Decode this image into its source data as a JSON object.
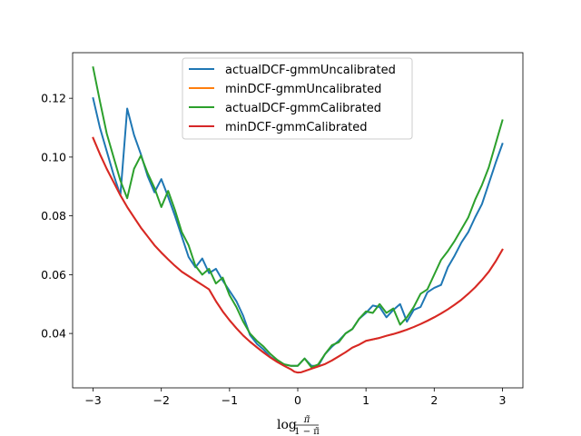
{
  "chart_data": {
    "type": "line",
    "title": "",
    "xlabel": "log π̃/(1 − π̃)",
    "xlabel_parts": {
      "log": "log",
      "num": "π̃",
      "den": "1 − π̃"
    },
    "ylabel": "",
    "xlim": [
      -3.3,
      3.3
    ],
    "ylim": [
      0.0215,
      0.1355
    ],
    "xticks": [
      -3,
      -2,
      -1,
      0,
      1,
      2,
      3
    ],
    "xtick_labels": [
      "−3",
      "−2",
      "−1",
      "0",
      "1",
      "2",
      "3"
    ],
    "yticks": [
      0.04,
      0.06,
      0.08,
      0.1,
      0.12
    ],
    "ytick_labels": [
      "0.04",
      "0.06",
      "0.08",
      "0.10",
      "0.12"
    ],
    "grid": false,
    "legend_location": "upper-center",
    "series": [
      {
        "name": "actualDCF-gmmUncalibrated",
        "color": "#1f77b4",
        "x": [
          -3.0,
          -2.9,
          -2.8,
          -2.7,
          -2.6,
          -2.5,
          -2.4,
          -2.3,
          -2.2,
          -2.1,
          -2.0,
          -1.9,
          -1.8,
          -1.7,
          -1.6,
          -1.5,
          -1.4,
          -1.3,
          -1.2,
          -1.1,
          -1.0,
          -0.9,
          -0.8,
          -0.7,
          -0.6,
          -0.5,
          -0.4,
          -0.3,
          -0.2,
          -0.1,
          0.0,
          0.1,
          0.2,
          0.3,
          0.4,
          0.5,
          0.6,
          0.7,
          0.8,
          0.9,
          1.0,
          1.1,
          1.2,
          1.3,
          1.4,
          1.5,
          1.6,
          1.7,
          1.8,
          1.9,
          2.0,
          2.1,
          2.2,
          2.3,
          2.4,
          2.5,
          2.6,
          2.7,
          2.8,
          2.9,
          3.0
        ],
        "values": [
          0.12,
          0.11,
          0.102,
          0.094,
          0.087,
          0.1165,
          0.1075,
          0.101,
          0.0935,
          0.088,
          0.0925,
          0.0865,
          0.08,
          0.073,
          0.066,
          0.0625,
          0.0655,
          0.0605,
          0.062,
          0.058,
          0.0545,
          0.051,
          0.046,
          0.0395,
          0.0365,
          0.0345,
          0.032,
          0.0305,
          0.0295,
          0.029,
          0.029,
          0.0315,
          0.029,
          0.029,
          0.033,
          0.0355,
          0.0375,
          0.04,
          0.0415,
          0.045,
          0.047,
          0.0495,
          0.049,
          0.0455,
          0.048,
          0.05,
          0.044,
          0.048,
          0.049,
          0.054,
          0.0555,
          0.0565,
          0.0625,
          0.0665,
          0.071,
          0.0745,
          0.0795,
          0.084,
          0.091,
          0.098,
          0.1045
        ]
      },
      {
        "name": "minDCF-gmmUncalibrated",
        "color": "#ff7f0e",
        "x": [
          -3.0,
          -2.9,
          -2.8,
          -2.7,
          -2.6,
          -2.5,
          -2.4,
          -2.3,
          -2.2,
          -2.1,
          -2.0,
          -1.9,
          -1.8,
          -1.7,
          -1.6,
          -1.5,
          -1.4,
          -1.3,
          -1.2,
          -1.1,
          -1.0,
          -0.9,
          -0.8,
          -0.7,
          -0.6,
          -0.5,
          -0.4,
          -0.3,
          -0.2,
          -0.1,
          -0.05,
          0.0,
          0.05,
          0.1,
          0.2,
          0.3,
          0.4,
          0.5,
          0.6,
          0.7,
          0.8,
          0.9,
          1.0,
          1.1,
          1.2,
          1.3,
          1.4,
          1.5,
          1.6,
          1.7,
          1.8,
          1.9,
          2.0,
          2.1,
          2.2,
          2.3,
          2.4,
          2.5,
          2.6,
          2.7,
          2.8,
          2.9,
          3.0
        ],
        "values": [
          0.1065,
          0.101,
          0.096,
          0.0915,
          0.087,
          0.083,
          0.0795,
          0.076,
          0.073,
          0.07,
          0.0675,
          0.0652,
          0.063,
          0.061,
          0.0595,
          0.058,
          0.0565,
          0.055,
          0.051,
          0.0475,
          0.0445,
          0.0418,
          0.0393,
          0.0372,
          0.0353,
          0.0335,
          0.0318,
          0.0303,
          0.029,
          0.0278,
          0.027,
          0.0267,
          0.0268,
          0.0272,
          0.028,
          0.0288,
          0.0296,
          0.0308,
          0.0322,
          0.0336,
          0.0352,
          0.0362,
          0.0375,
          0.038,
          0.0385,
          0.0392,
          0.0398,
          0.0405,
          0.0413,
          0.0422,
          0.0432,
          0.0443,
          0.0455,
          0.0468,
          0.0482,
          0.0498,
          0.0515,
          0.0535,
          0.0557,
          0.0582,
          0.061,
          0.0645,
          0.0685
        ]
      },
      {
        "name": "actualDCF-gmmCalibrated",
        "color": "#2ca02c",
        "x": [
          -3.0,
          -2.9,
          -2.8,
          -2.7,
          -2.6,
          -2.5,
          -2.4,
          -2.3,
          -2.2,
          -2.1,
          -2.0,
          -1.9,
          -1.8,
          -1.7,
          -1.6,
          -1.5,
          -1.4,
          -1.3,
          -1.2,
          -1.1,
          -1.0,
          -0.9,
          -0.8,
          -0.7,
          -0.6,
          -0.5,
          -0.4,
          -0.3,
          -0.2,
          -0.1,
          0.0,
          0.1,
          0.2,
          0.3,
          0.4,
          0.5,
          0.6,
          0.7,
          0.8,
          0.9,
          1.0,
          1.1,
          1.2,
          1.3,
          1.4,
          1.5,
          1.6,
          1.7,
          1.8,
          1.9,
          2.0,
          2.1,
          2.2,
          2.3,
          2.4,
          2.5,
          2.6,
          2.7,
          2.8,
          2.9,
          3.0
        ],
        "values": [
          0.1305,
          0.119,
          0.108,
          0.1,
          0.092,
          0.086,
          0.096,
          0.1005,
          0.0945,
          0.0895,
          0.083,
          0.0885,
          0.082,
          0.0745,
          0.07,
          0.063,
          0.06,
          0.062,
          0.057,
          0.059,
          0.053,
          0.049,
          0.044,
          0.04,
          0.0375,
          0.0355,
          0.033,
          0.031,
          0.0295,
          0.029,
          0.029,
          0.0315,
          0.0285,
          0.0295,
          0.033,
          0.036,
          0.037,
          0.04,
          0.0415,
          0.045,
          0.0475,
          0.047,
          0.05,
          0.047,
          0.0485,
          0.043,
          0.0455,
          0.049,
          0.0535,
          0.055,
          0.06,
          0.065,
          0.068,
          0.0715,
          0.0755,
          0.0795,
          0.0855,
          0.0905,
          0.0965,
          0.1045,
          0.1125
        ]
      },
      {
        "name": "minDCF-gmmCalibrated",
        "color": "#d62728",
        "x": [
          -3.0,
          -2.9,
          -2.8,
          -2.7,
          -2.6,
          -2.5,
          -2.4,
          -2.3,
          -2.2,
          -2.1,
          -2.0,
          -1.9,
          -1.8,
          -1.7,
          -1.6,
          -1.5,
          -1.4,
          -1.3,
          -1.2,
          -1.1,
          -1.0,
          -0.9,
          -0.8,
          -0.7,
          -0.6,
          -0.5,
          -0.4,
          -0.3,
          -0.2,
          -0.1,
          -0.05,
          0.0,
          0.05,
          0.1,
          0.2,
          0.3,
          0.4,
          0.5,
          0.6,
          0.7,
          0.8,
          0.9,
          1.0,
          1.1,
          1.2,
          1.3,
          1.4,
          1.5,
          1.6,
          1.7,
          1.8,
          1.9,
          2.0,
          2.1,
          2.2,
          2.3,
          2.4,
          2.5,
          2.6,
          2.7,
          2.8,
          2.9,
          3.0
        ],
        "values": [
          0.1065,
          0.101,
          0.096,
          0.0915,
          0.087,
          0.083,
          0.0795,
          0.076,
          0.073,
          0.07,
          0.0675,
          0.0652,
          0.063,
          0.061,
          0.0595,
          0.058,
          0.0565,
          0.055,
          0.051,
          0.0475,
          0.0445,
          0.0418,
          0.0393,
          0.0372,
          0.0353,
          0.0335,
          0.0318,
          0.0303,
          0.029,
          0.0278,
          0.027,
          0.0267,
          0.0268,
          0.0272,
          0.028,
          0.0288,
          0.0296,
          0.0308,
          0.0322,
          0.0336,
          0.0352,
          0.0362,
          0.0375,
          0.038,
          0.0385,
          0.0392,
          0.0398,
          0.0405,
          0.0413,
          0.0422,
          0.0432,
          0.0443,
          0.0455,
          0.0468,
          0.0482,
          0.0498,
          0.0515,
          0.0535,
          0.0557,
          0.0582,
          0.061,
          0.0645,
          0.0685
        ]
      }
    ]
  }
}
